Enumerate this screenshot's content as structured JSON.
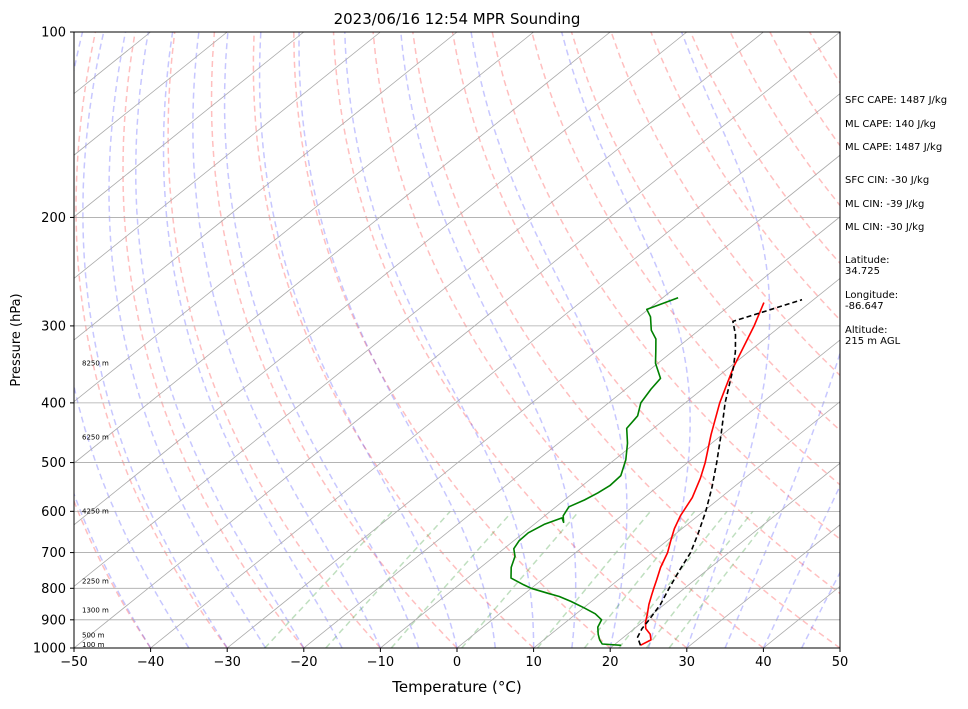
{
  "chart_data": {
    "type": "line",
    "title": "2023/06/16 12:54 MPR Sounding",
    "xlabel": "Temperature (°C)",
    "ylabel": "Pressure (hPa)",
    "x_range": [
      -50,
      50
    ],
    "y_range": [
      1000,
      100
    ],
    "y_scale": "log",
    "grid": true,
    "x_ticks": [
      -50,
      -40,
      -30,
      -20,
      -10,
      0,
      10,
      20,
      30,
      40,
      50
    ],
    "x_tick_labels": [
      "−50",
      "−40",
      "−30",
      "−20",
      "−10",
      "0",
      "10",
      "20",
      "30",
      "40",
      "50"
    ],
    "y_ticks": [
      1000,
      900,
      800,
      700,
      600,
      500,
      400,
      300,
      200,
      100
    ],
    "y_tick_labels": [
      "1000",
      "900",
      "800",
      "700",
      "600",
      "500",
      "400",
      "300",
      "200",
      "100"
    ],
    "height_labels": [
      {
        "p": 988,
        "text": "100 m"
      },
      {
        "p": 955,
        "text": "500 m"
      },
      {
        "p": 870,
        "text": "1300 m"
      },
      {
        "p": 780,
        "text": "2250 m"
      },
      {
        "p": 600,
        "text": "4250 m"
      },
      {
        "p": 455,
        "text": "6250 m"
      },
      {
        "p": 345,
        "text": "8250 m"
      }
    ],
    "series": [
      {
        "role": "temperature",
        "color": "#ff0000",
        "points": [
          [
            23.5,
            990
          ],
          [
            24,
            970
          ],
          [
            23,
            950
          ],
          [
            21.5,
            930
          ],
          [
            20.5,
            910
          ],
          [
            19.3,
            880
          ],
          [
            18,
            850
          ],
          [
            16.8,
            820
          ],
          [
            16,
            800
          ],
          [
            15,
            775
          ],
          [
            13.5,
            740
          ],
          [
            12,
            700
          ],
          [
            10.5,
            670
          ],
          [
            9,
            640
          ],
          [
            7.7,
            610
          ],
          [
            6.3,
            570
          ],
          [
            4.2,
            530
          ],
          [
            2.3,
            500
          ],
          [
            -1.5,
            450
          ],
          [
            -5.5,
            400
          ],
          [
            -9.5,
            350
          ],
          [
            -13.5,
            300
          ],
          [
            -16,
            275
          ]
        ]
      },
      {
        "role": "dewpoint",
        "color": "#008000",
        "points": [
          [
            21,
            990
          ],
          [
            18.3,
            985
          ],
          [
            17.3,
            970
          ],
          [
            16.2,
            950
          ],
          [
            15,
            925
          ],
          [
            14.3,
            900
          ],
          [
            12.5,
            880
          ],
          [
            10,
            860
          ],
          [
            7.3,
            840
          ],
          [
            5,
            825
          ],
          [
            3,
            815
          ],
          [
            0,
            800
          ],
          [
            -1.5,
            790
          ],
          [
            -4.3,
            770
          ],
          [
            -6,
            740
          ],
          [
            -7.3,
            710
          ],
          [
            -8.7,
            690
          ],
          [
            -9.3,
            670
          ],
          [
            -9.4,
            650
          ],
          [
            -8.7,
            630
          ],
          [
            -7.4,
            615
          ],
          [
            -6.5,
            625
          ],
          [
            -7.6,
            610
          ],
          [
            -8.3,
            590
          ],
          [
            -7.4,
            575
          ],
          [
            -6.8,
            560
          ],
          [
            -6.4,
            545
          ],
          [
            -6.6,
            525
          ],
          [
            -8.5,
            495
          ],
          [
            -11,
            465
          ],
          [
            -13.5,
            440
          ],
          [
            -14.1,
            420
          ],
          [
            -15.8,
            400
          ],
          [
            -16.7,
            380
          ],
          [
            -17.2,
            365
          ],
          [
            -20.3,
            345
          ],
          [
            -22.2,
            330
          ],
          [
            -24.2,
            315
          ],
          [
            -26.2,
            305
          ],
          [
            -28.5,
            290
          ],
          [
            -30.2,
            282
          ],
          [
            -28,
            270
          ]
        ]
      },
      {
        "role": "parcel",
        "color": "#000000",
        "points": [
          [
            23.5,
            990
          ],
          [
            21.8,
            960
          ],
          [
            21,
            930
          ],
          [
            20.5,
            900
          ],
          [
            19.5,
            850
          ],
          [
            18,
            800
          ],
          [
            16.5,
            750
          ],
          [
            15,
            700
          ],
          [
            12.8,
            650
          ],
          [
            10.3,
            600
          ],
          [
            7.3,
            550
          ],
          [
            3.8,
            500
          ],
          [
            -0.2,
            450
          ],
          [
            -4.8,
            400
          ],
          [
            -9.5,
            350
          ],
          [
            -11.8,
            330
          ],
          [
            -14.5,
            310
          ],
          [
            -17,
            295
          ],
          [
            -11.5,
            272
          ]
        ]
      }
    ]
  },
  "stats": {
    "sfc_cape": "SFC CAPE: 1487 J/kg",
    "ml_cape_1": "ML CAPE: 140 J/kg",
    "ml_cape_2": "ML CAPE: 1487 J/kg",
    "sfc_cin": "SFC CIN: -30 J/kg",
    "ml_cin_1": "ML CIN: -39 J/kg",
    "ml_cin_2": "ML CIN: -30 J/kg",
    "latitude_label": "Latitude:",
    "latitude_value": "34.725",
    "longitude_label": "Longitude:",
    "longitude_value": "-86.647",
    "altitude_label": "Altitude:",
    "altitude_value": "215 m AGL"
  }
}
